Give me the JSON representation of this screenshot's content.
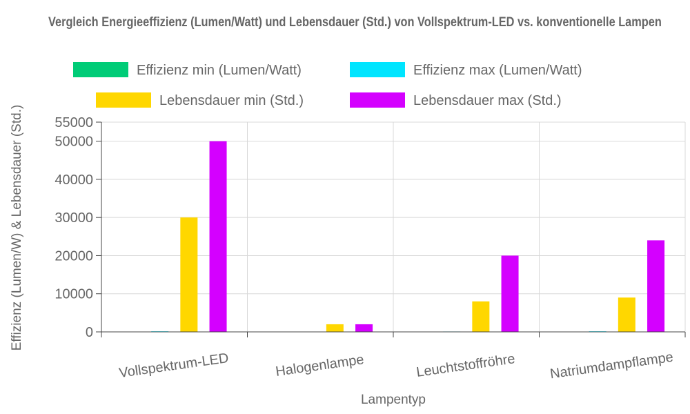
{
  "chart_data": {
    "type": "bar",
    "title": "Vergleich Energieeffizienz (Lumen/Watt) und Lebensdauer (Std.) von Vollspektrum-LED vs. konventionelle Lampen",
    "xlabel": "Lampentyp",
    "ylabel": "Effizienz (Lumen/W) & Lebensdauer (Std.)",
    "categories": [
      "Vollspektrum-LED",
      "Halogenlampe",
      "Leuchtstoffröhre",
      "Natriumdampflampe"
    ],
    "series": [
      {
        "name": "Effizienz min (Lumen/Watt)",
        "color": "#00cc77",
        "values": [
          80,
          12,
          50,
          80
        ]
      },
      {
        "name": "Effizienz max (Lumen/Watt)",
        "color": "#00e5ff",
        "values": [
          150,
          25,
          100,
          150
        ]
      },
      {
        "name": "Lebensdauer min (Std.)",
        "color": "#ffd700",
        "values": [
          30000,
          2000,
          8000,
          9000
        ]
      },
      {
        "name": "Lebensdauer max (Std.)",
        "color": "#d400ff",
        "values": [
          50000,
          2000,
          20000,
          24000
        ]
      }
    ],
    "ylim": [
      0,
      55000
    ],
    "yticks": [
      0,
      10000,
      20000,
      30000,
      40000,
      50000,
      55000
    ],
    "legend": "top",
    "grid": true
  }
}
